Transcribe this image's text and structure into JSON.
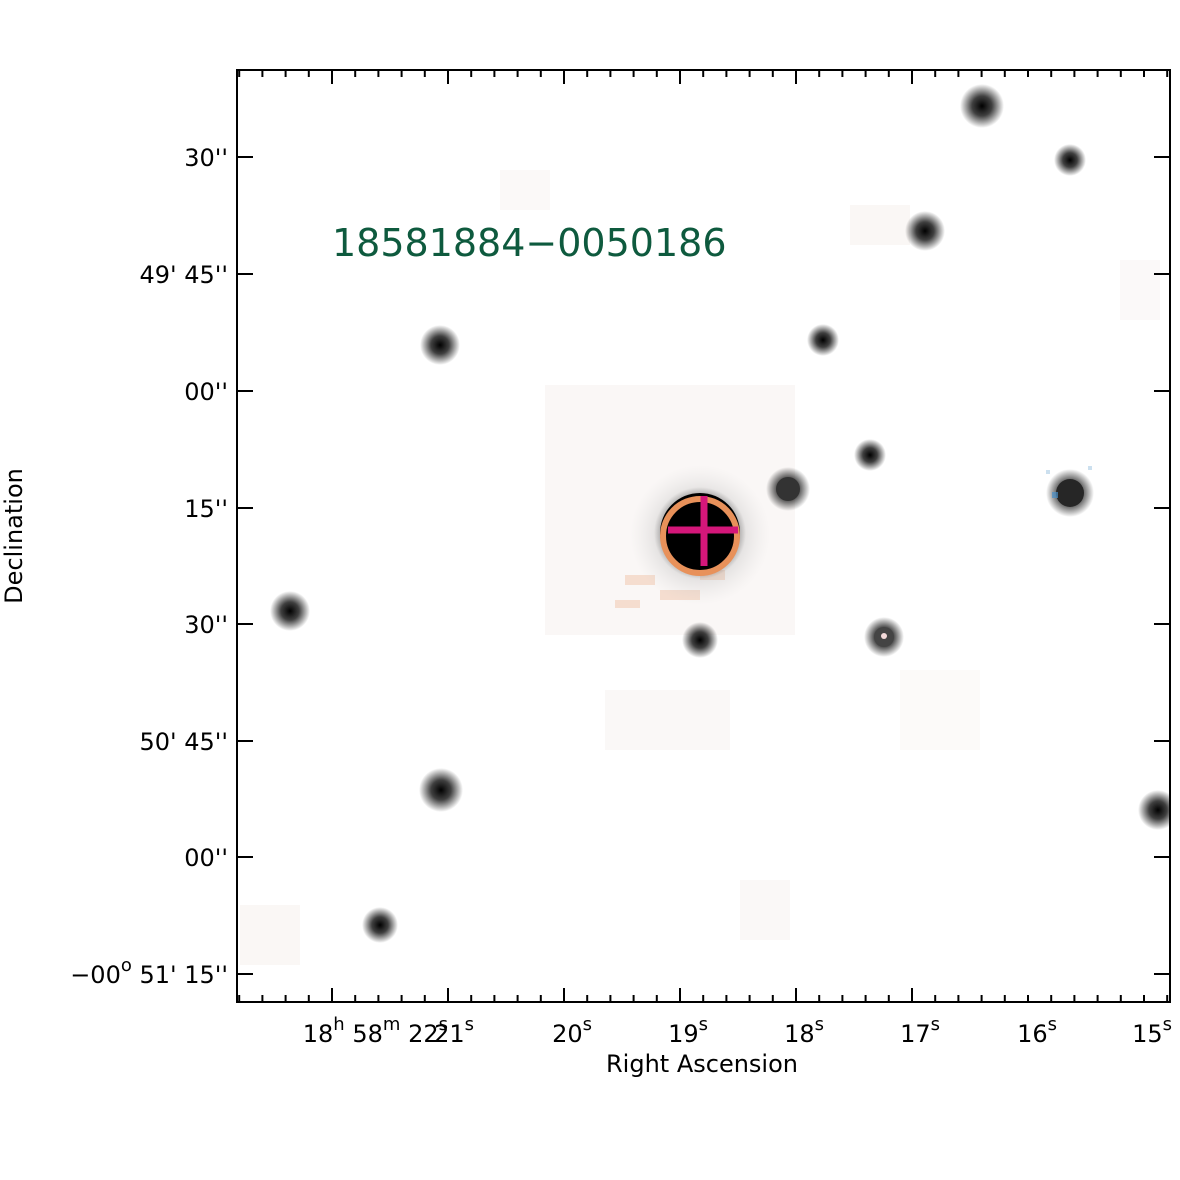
{
  "image": {
    "source_label": "18581884−0050186",
    "source_label_color": "#0e5a3e",
    "frame_color": "#000000",
    "background_color": "#ffffff",
    "circle_color": "#e8915a",
    "cross_color": "#d4177a"
  },
  "axes": {
    "xlabel": "Right Ascension",
    "ylabel": "Declination",
    "ra_ticks": [
      {
        "parts": [
          {
            "t": "18"
          },
          {
            "t": "h",
            "sup": true
          },
          {
            "t": " 58"
          },
          {
            "t": "m",
            "sup": true
          },
          {
            "t": " 22"
          },
          {
            "t": "s",
            "sup": true
          }
        ]
      },
      {
        "parts": [
          {
            "t": "21"
          },
          {
            "t": "s",
            "sup": true
          }
        ]
      },
      {
        "parts": [
          {
            "t": "20"
          },
          {
            "t": "s",
            "sup": true
          }
        ]
      },
      {
        "parts": [
          {
            "t": "19"
          },
          {
            "t": "s",
            "sup": true
          }
        ]
      },
      {
        "parts": [
          {
            "t": "18"
          },
          {
            "t": "s",
            "sup": true
          }
        ]
      },
      {
        "parts": [
          {
            "t": "17"
          },
          {
            "t": "s",
            "sup": true
          }
        ]
      },
      {
        "parts": [
          {
            "t": "16"
          },
          {
            "t": "s",
            "sup": true
          }
        ]
      },
      {
        "parts": [
          {
            "t": "15"
          },
          {
            "t": "s",
            "sup": true
          }
        ]
      }
    ],
    "dec_ticks": [
      {
        "parts": [
          {
            "t": "30''"
          }
        ]
      },
      {
        "parts": [
          {
            "t": "49' 45''"
          }
        ]
      },
      {
        "parts": [
          {
            "t": "00''"
          }
        ]
      },
      {
        "parts": [
          {
            "t": "15''"
          }
        ]
      },
      {
        "parts": [
          {
            "t": "30''"
          }
        ]
      },
      {
        "parts": [
          {
            "t": "50' 45''"
          }
        ]
      },
      {
        "parts": [
          {
            "t": "00''"
          }
        ]
      },
      {
        "parts": [
          {
            "t": "−00"
          },
          {
            "t": "o",
            "sup": true
          },
          {
            "t": " 51' 15''"
          }
        ]
      }
    ]
  },
  "stars": [
    {
      "name": "target-star",
      "color": "#000000"
    },
    {
      "name": "star",
      "color": "#333333"
    },
    {
      "name": "star",
      "color": "#262626"
    },
    {
      "name": "star",
      "color": "#444444"
    },
    {
      "name": "star",
      "color": "#9a9a9a"
    },
    {
      "name": "star",
      "color": "#a8a8a8"
    },
    {
      "name": "star",
      "color": "#b0b0b0"
    },
    {
      "name": "star",
      "color": "#b8b8b8"
    },
    {
      "name": "star",
      "color": "#b5b5b5"
    },
    {
      "name": "star",
      "color": "#c4c4c4"
    },
    {
      "name": "star",
      "color": "#c8c8c8"
    },
    {
      "name": "star",
      "color": "#c0c0c0"
    },
    {
      "name": "star",
      "color": "#cfcfcf"
    },
    {
      "name": "star",
      "color": "#d2d2d2"
    },
    {
      "name": "star",
      "color": "#d4d4d4"
    }
  ]
}
